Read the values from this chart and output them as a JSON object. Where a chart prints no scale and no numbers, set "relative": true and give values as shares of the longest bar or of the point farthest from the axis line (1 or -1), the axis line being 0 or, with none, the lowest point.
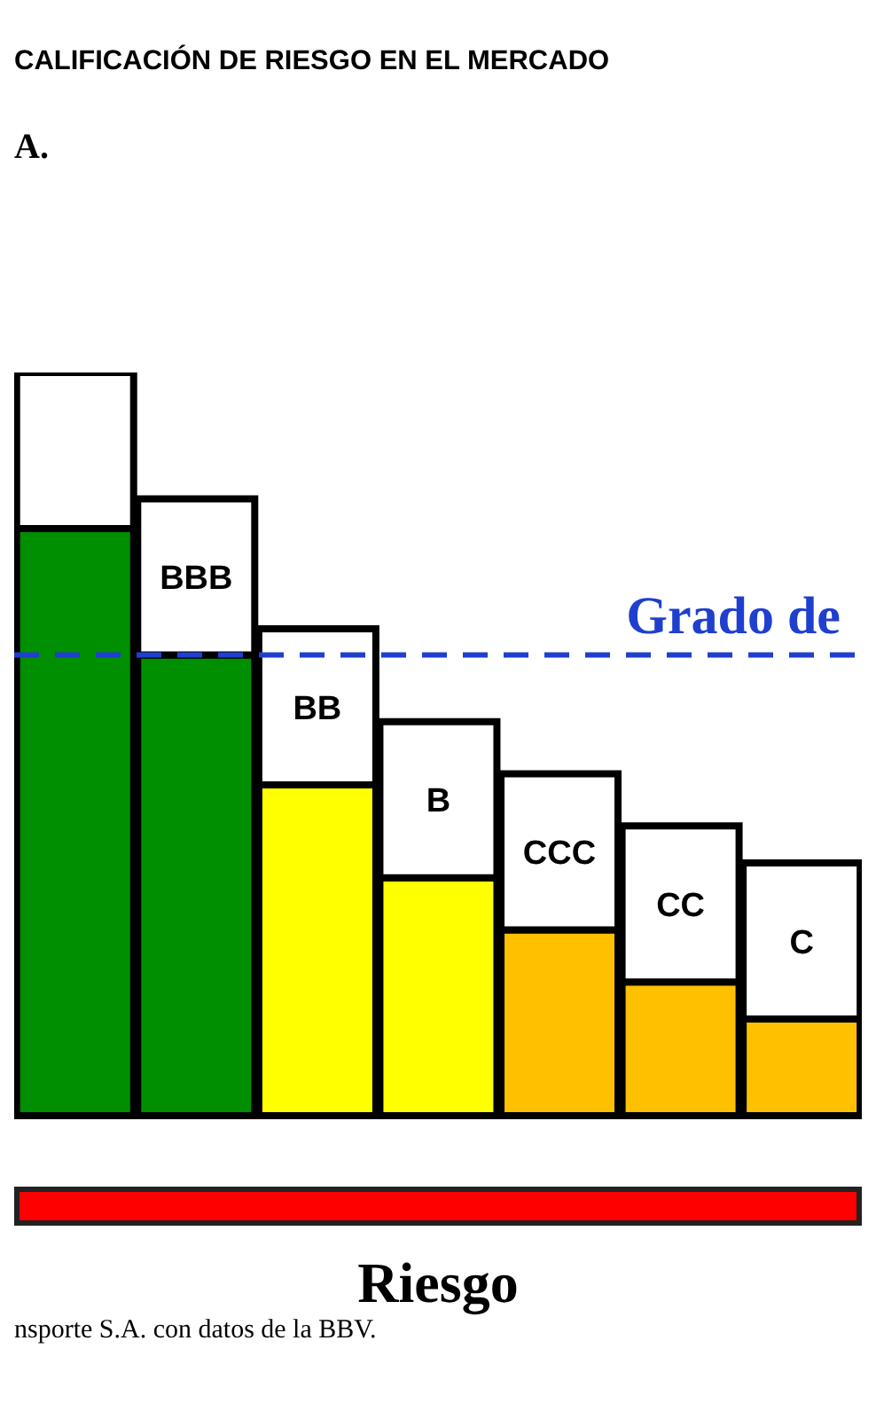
{
  "chart_data": {
    "type": "bar",
    "title": "CALIFICACIÓN DE RIESGO EN EL MERCADO",
    "subtitle": "A.",
    "xlabel": "Riesgo",
    "annotations": [
      "nsporte S.A. con datos de la BBV."
    ],
    "relative": true,
    "stacked": true,
    "categories": [
      null,
      "BBB",
      "BB",
      "B",
      "CCC",
      "CC",
      "C"
    ],
    "series": [
      {
        "colors": [
          "#008f00",
          "#008f00",
          "#ffff00",
          "#ffff00",
          "#ffc000",
          "#ffc000",
          "#ffc000"
        ],
        "values": [
          0.79,
          0.62,
          0.445,
          0.32,
          0.25,
          0.18,
          0.13
        ]
      },
      {
        "color": "#ffffff",
        "values": [
          0.21,
          0.21,
          0.21,
          0.21,
          0.21,
          0.21,
          0.21
        ]
      }
    ],
    "ref_lines": [
      {
        "axis": "y",
        "value": 0.62,
        "label": "Grado de",
        "color": "#1f3fcf",
        "line_style": "dashed"
      }
    ],
    "legend": false,
    "grid": false
  }
}
